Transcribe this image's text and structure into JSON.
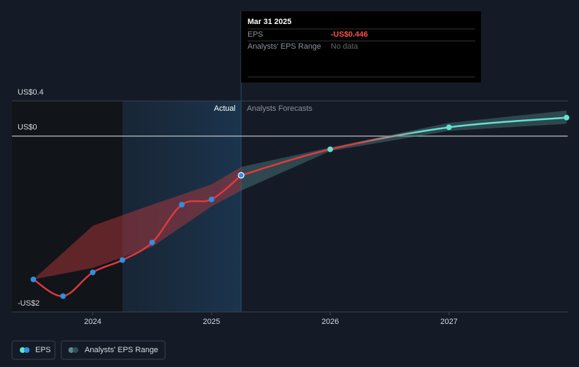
{
  "chart_data": {
    "type": "line",
    "xlim": [
      2023.32,
      2028.0
    ],
    "xticks": [
      2024,
      2025,
      2026,
      2027
    ],
    "ylim": [
      -2,
      0.4
    ],
    "yticks": [
      {
        "value": 0.4,
        "label": "US$0.4"
      },
      {
        "value": 0,
        "label": "US$0"
      },
      {
        "value": -2,
        "label": "-US$2"
      }
    ],
    "series": [
      {
        "name": "EPS",
        "color": "#e0393e",
        "marker_color": "#2f8fe0",
        "x": [
          2023.5,
          2023.75,
          2024.0,
          2024.25,
          2024.5,
          2024.75,
          2025.0,
          2025.25
        ],
        "values": [
          -1.63,
          -1.82,
          -1.55,
          -1.41,
          -1.21,
          -0.78,
          -0.72,
          -0.446
        ]
      }
    ],
    "forecast": {
      "color": "#5fe3d3",
      "x": [
        2025.25,
        2026.0,
        2027.0,
        2027.99
      ],
      "values": [
        -0.446,
        -0.15,
        0.1,
        0.21
      ]
    },
    "range": {
      "name": "Analysts' EPS Range",
      "x": [
        2023.5,
        2024.0,
        2024.5,
        2025.0,
        2025.25,
        2026.0,
        2027.0,
        2027.99
      ],
      "low": [
        -1.63,
        -1.5,
        -1.26,
        -0.8,
        -0.62,
        -0.17,
        0.06,
        0.14
      ],
      "high": [
        -1.63,
        -1.02,
        -0.78,
        -0.55,
        -0.35,
        -0.13,
        0.15,
        0.29
      ]
    },
    "actual_label": "Actual",
    "forecast_label": "Analysts Forecasts",
    "tooltip": {
      "date": "Mar 31 2025",
      "rows": [
        [
          "EPS",
          "-US$0.446"
        ],
        [
          "Analysts' EPS Range",
          "No data"
        ]
      ]
    }
  }
}
